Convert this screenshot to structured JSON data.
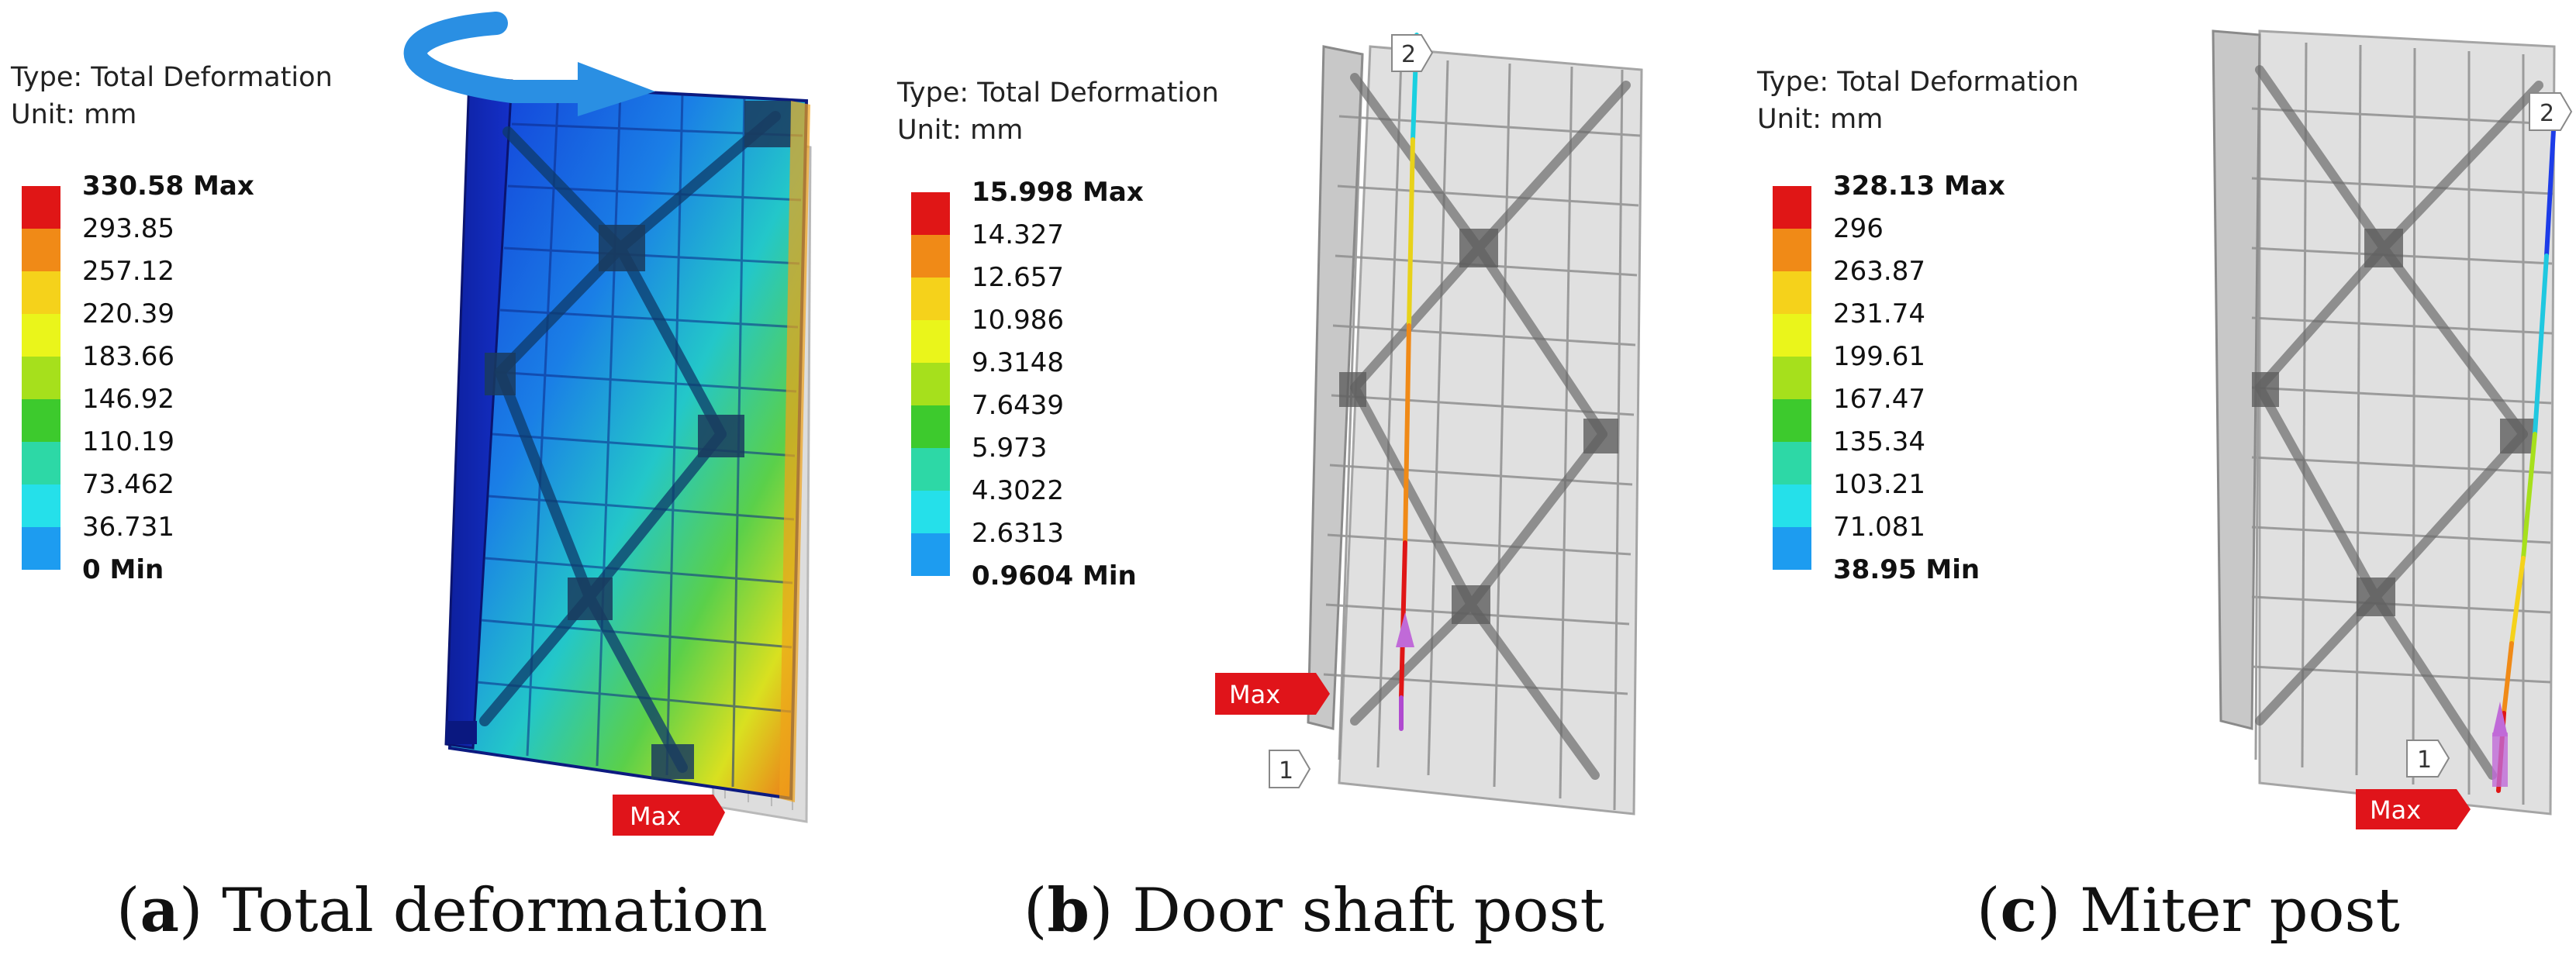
{
  "panels": [
    {
      "legend": {
        "type_line": "Type: Total Deformation",
        "unit_line": "Unit: mm",
        "ticks": [
          "330.58 Max",
          "293.85",
          "257.12",
          "220.39",
          "183.66",
          "146.92",
          "110.19",
          "73.462",
          "36.731",
          "0 Min"
        ]
      },
      "markers": {
        "max": "Max"
      },
      "caption": {
        "letter": "a",
        "text": "Total deformation"
      }
    },
    {
      "legend": {
        "type_line": "Type: Total Deformation",
        "unit_line": "Unit: mm",
        "ticks": [
          "15.998 Max",
          "14.327",
          "12.657",
          "10.986",
          "9.3148",
          "7.6439",
          "5.973",
          "4.3022",
          "2.6313",
          "0.9604 Min"
        ]
      },
      "markers": {
        "max": "Max",
        "point1": "1",
        "point2": "2"
      },
      "caption": {
        "letter": "b",
        "text": "Door shaft post"
      }
    },
    {
      "legend": {
        "type_line": "Type: Total Deformation",
        "unit_line": "Unit: mm",
        "ticks": [
          "328.13 Max",
          "296",
          "263.87",
          "231.74",
          "199.61",
          "167.47",
          "135.34",
          "103.21",
          "71.081",
          "38.95 Min"
        ]
      },
      "markers": {
        "max": "Max",
        "point1": "1",
        "point2": "2"
      },
      "caption": {
        "letter": "c",
        "text": "Miter post"
      }
    }
  ],
  "colors": {
    "scale": [
      "#e01616",
      "#f08a17",
      "#f5d21b",
      "#eaf51b",
      "#a6e01c",
      "#3dca2d",
      "#2dd8a6",
      "#25e0ea",
      "#1d9cf0",
      "#1020e8"
    ],
    "max_marker": "#e0141a",
    "mesh_gray": "#9a9a9a"
  }
}
